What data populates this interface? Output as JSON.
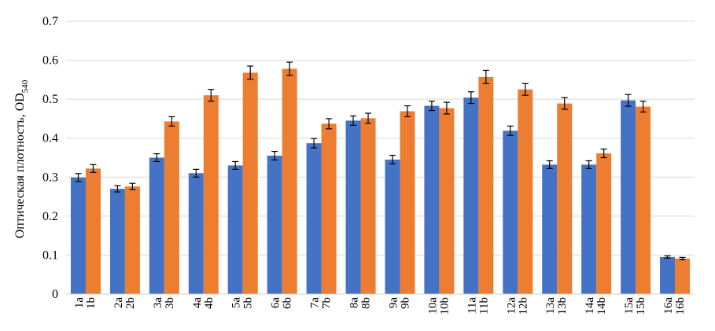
{
  "chart_data": {
    "type": "bar",
    "ylabel_main": "Оптическая плотность, OD",
    "ylabel_sub": "540",
    "ylim": [
      0,
      0.7
    ],
    "yticks": [
      "0",
      "0.1",
      "0.2",
      "0.3",
      "0.4",
      "0.5",
      "0.6",
      "0.7"
    ],
    "grid": true,
    "categories": [
      [
        "1a",
        "1b"
      ],
      [
        "2a",
        "2b"
      ],
      [
        "3a",
        "3b"
      ],
      [
        "4a",
        "4b"
      ],
      [
        "5a",
        "5b"
      ],
      [
        "6a",
        "6b"
      ],
      [
        "7a",
        "7b"
      ],
      [
        "8a",
        "8b"
      ],
      [
        "9a",
        "9b"
      ],
      [
        "10a",
        "10b"
      ],
      [
        "11a",
        "11b"
      ],
      [
        "12a",
        "12b"
      ],
      [
        "13a",
        "13b"
      ],
      [
        "14a",
        "14b"
      ],
      [
        "15a",
        "15b"
      ],
      [
        "16a",
        "16b"
      ]
    ],
    "series": [
      {
        "color": "#4472C4",
        "values": [
          0.299,
          0.27,
          0.35,
          0.31,
          0.33,
          0.355,
          0.387,
          0.445,
          0.345,
          0.483,
          0.504,
          0.419,
          0.332,
          0.332,
          0.497,
          0.095
        ],
        "errors": [
          0.01,
          0.008,
          0.01,
          0.01,
          0.01,
          0.011,
          0.012,
          0.012,
          0.011,
          0.012,
          0.015,
          0.012,
          0.01,
          0.01,
          0.015,
          0.003
        ]
      },
      {
        "color": "#ED7D31",
        "values": [
          0.322,
          0.276,
          0.443,
          0.51,
          0.568,
          0.578,
          0.437,
          0.451,
          0.469,
          0.477,
          0.557,
          0.525,
          0.489,
          0.361,
          0.481,
          0.091
        ],
        "errors": [
          0.01,
          0.008,
          0.012,
          0.015,
          0.017,
          0.017,
          0.013,
          0.013,
          0.014,
          0.015,
          0.017,
          0.015,
          0.015,
          0.011,
          0.014,
          0.003
        ]
      }
    ]
  }
}
